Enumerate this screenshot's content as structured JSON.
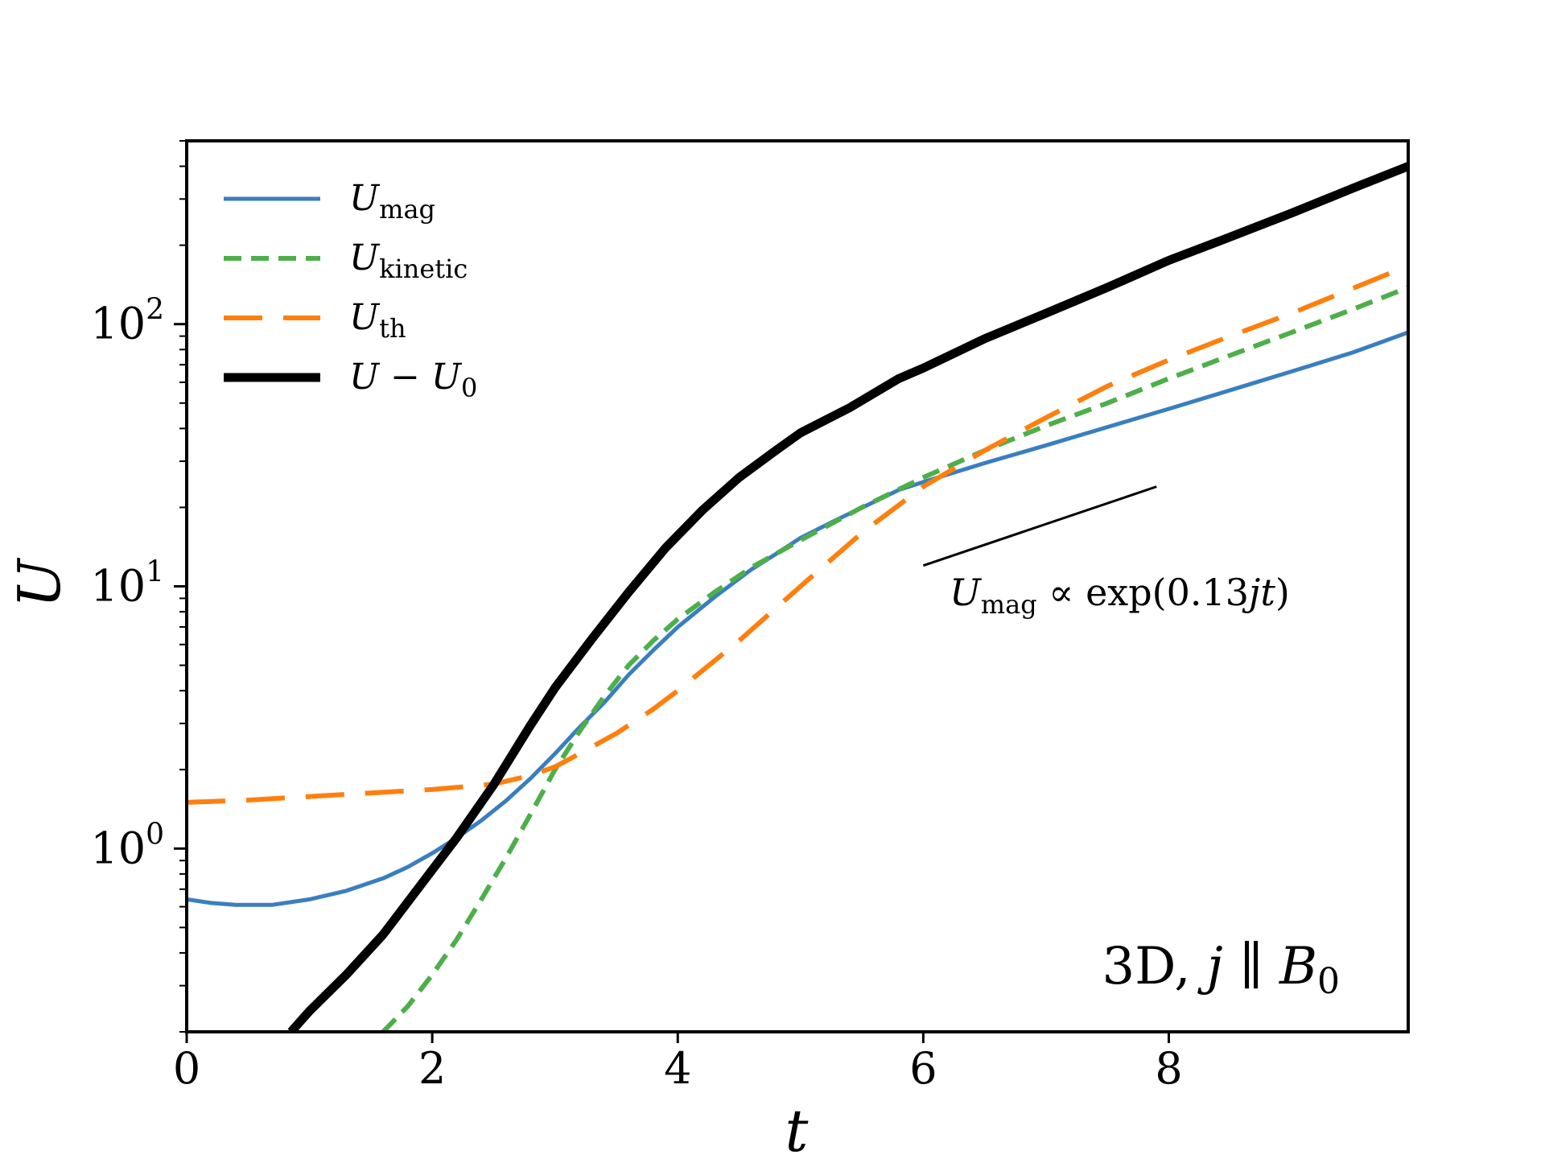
{
  "chart_data": {
    "type": "line",
    "title": "",
    "xlabel": "t",
    "ylabel": "U",
    "xlim": [
      0,
      9.95
    ],
    "ylim": [
      0.2,
      500
    ],
    "yscale": "log",
    "grid": false,
    "legend_position": "top-left",
    "x_ticks": [
      "0",
      "2",
      "4",
      "6",
      "8"
    ],
    "y_ticks": [
      {
        "base": "10",
        "exp": "0"
      },
      {
        "base": "10",
        "exp": "1"
      },
      {
        "base": "10",
        "exp": "2"
      }
    ],
    "series": [
      {
        "name": "U_mag",
        "legend_main": "U",
        "legend_sub": "mag",
        "color": "#3a7ebf",
        "style": "solid",
        "x": [
          0,
          0.2,
          0.4,
          0.7,
          1.0,
          1.3,
          1.6,
          1.8,
          2.0,
          2.2,
          2.4,
          2.6,
          2.8,
          3.0,
          3.2,
          3.4,
          3.6,
          3.8,
          4.0,
          4.3,
          4.6,
          4.8,
          5.0,
          5.3,
          5.6,
          5.8,
          6.0,
          6.5,
          7.0,
          7.5,
          8.0,
          8.5,
          9.0,
          9.5,
          9.95
        ],
        "y": [
          0.64,
          0.62,
          0.61,
          0.61,
          0.64,
          0.69,
          0.77,
          0.85,
          0.96,
          1.1,
          1.28,
          1.52,
          1.85,
          2.3,
          2.9,
          3.6,
          4.6,
          5.7,
          7.0,
          9.1,
          11.6,
          13.3,
          15.3,
          18.0,
          21.0,
          23.3,
          25.0,
          29.5,
          34.5,
          40.5,
          47.5,
          56,
          66,
          78,
          93
        ]
      },
      {
        "name": "U_kinetic",
        "legend_main": "U",
        "legend_sub": "kinetic",
        "color": "#4daf4a",
        "style": "dashed",
        "x": [
          1.6,
          1.8,
          2.0,
          2.2,
          2.4,
          2.6,
          2.8,
          3.0,
          3.2,
          3.4,
          3.6,
          3.8,
          4.0,
          4.3,
          4.6,
          5.0,
          5.5,
          6.0,
          6.5,
          7.0,
          7.5,
          8.0,
          8.5,
          9.0,
          9.5,
          9.95
        ],
        "y": [
          0.2,
          0.25,
          0.33,
          0.45,
          0.64,
          0.92,
          1.35,
          2.0,
          2.8,
          3.8,
          5.0,
          6.2,
          7.5,
          9.5,
          11.8,
          15.0,
          20.0,
          26.0,
          33.0,
          41.0,
          50.0,
          62.0,
          76.0,
          93.0,
          114,
          138
        ]
      },
      {
        "name": "U_th",
        "legend_main": "U",
        "legend_sub": "th",
        "color": "#ff7f0e",
        "style": "longdash",
        "x": [
          0,
          0.5,
          1.0,
          1.5,
          2.0,
          2.5,
          2.8,
          3.0,
          3.2,
          3.5,
          3.8,
          4.0,
          4.5,
          5.0,
          5.5,
          6.0,
          6.5,
          7.0,
          7.5,
          8.0,
          8.5,
          9.0,
          9.5,
          9.95
        ],
        "y": [
          1.5,
          1.53,
          1.58,
          1.63,
          1.68,
          1.76,
          1.9,
          2.05,
          2.3,
          2.75,
          3.4,
          4.0,
          6.2,
          10.0,
          16.0,
          24.0,
          33.0,
          44.0,
          58.0,
          73.0,
          90.0,
          110,
          137,
          167
        ]
      },
      {
        "name": "U - U_0",
        "legend_main": "U − U",
        "legend_sub": "0",
        "color": "#000000",
        "style": "solid-thick",
        "x": [
          0.85,
          1.0,
          1.3,
          1.6,
          1.9,
          2.2,
          2.5,
          2.8,
          3.0,
          3.3,
          3.6,
          3.9,
          4.2,
          4.5,
          4.8,
          5.0,
          5.4,
          5.8,
          6.0,
          6.5,
          7.0,
          7.5,
          8.0,
          8.5,
          9.0,
          9.5,
          9.95
        ],
        "y": [
          0.2,
          0.24,
          0.33,
          0.47,
          0.72,
          1.1,
          1.75,
          2.95,
          4.1,
          6.3,
          9.5,
          14.0,
          19.5,
          26.0,
          33.0,
          38.5,
          48.0,
          62.0,
          68.0,
          88.0,
          110,
          138,
          175,
          215,
          265,
          330,
          400
        ]
      }
    ],
    "reference_line": {
      "x": [
        6.0,
        7.9
      ],
      "y": [
        12.0,
        24.0
      ],
      "color": "#000000"
    },
    "annotations": {
      "slope_label": {
        "main": "U",
        "sub": "mag",
        "rest": " ∝ exp(0.13",
        "j": "j",
        "t": "t",
        "close": ")"
      },
      "corner_label": {
        "prefix": "3D, ",
        "j": "j",
        "parallel": " ∥ ",
        "B": "B",
        "sub": "0"
      }
    }
  }
}
